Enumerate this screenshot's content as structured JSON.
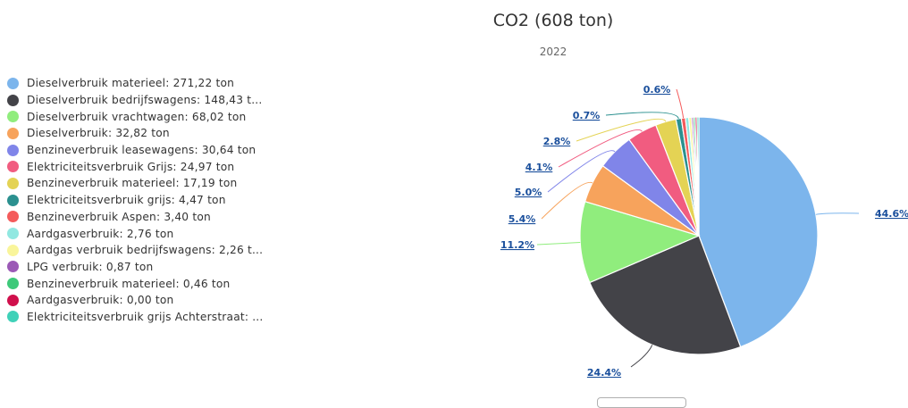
{
  "chart_data": {
    "type": "pie",
    "title": "CO2 (608 ton)",
    "subtitle": "2022",
    "unit": "ton",
    "slices": [
      {
        "name": "Dieselverbruik materieel",
        "legend_label": "Dieselverbruik materieel: 271,22 ton",
        "value": 271.22,
        "percent_label": "44.6%",
        "color": "#7cb5ec"
      },
      {
        "name": "Dieselverbruik bedrijfswagens",
        "legend_label": "Dieselverbruik bedrijfswagens: 148,43 t...",
        "value": 148.43,
        "percent_label": "24.4%",
        "color": "#434348"
      },
      {
        "name": "Dieselverbruik vrachtwagen",
        "legend_label": "Dieselverbruik vrachtwagen: 68,02 ton",
        "value": 68.02,
        "percent_label": "11.2%",
        "color": "#90ed7d"
      },
      {
        "name": "Dieselverbruik",
        "legend_label": "Dieselverbruik: 32,82 ton",
        "value": 32.82,
        "percent_label": "5.4%",
        "color": "#f7a35c"
      },
      {
        "name": "Benzineverbruik leasewagens",
        "legend_label": "Benzineverbruik leasewagens: 30,64 ton",
        "value": 30.64,
        "percent_label": "5.0%",
        "color": "#8085e9"
      },
      {
        "name": "Elektriciteitsverbruik Grijs",
        "legend_label": "Elektriciteitsverbruik Grijs: 24,97 ton",
        "value": 24.97,
        "percent_label": "4.1%",
        "color": "#f15c80"
      },
      {
        "name": "Benzineverbruik materieel",
        "legend_label": "Benzineverbruik materieel: 17,19 ton",
        "value": 17.19,
        "percent_label": "2.8%",
        "color": "#e4d354"
      },
      {
        "name": "Elektriciteitsverbruik grijs",
        "legend_label": "Elektriciteitsverbruik grijs: 4,47 ton",
        "value": 4.47,
        "percent_label": "0.7%",
        "color": "#2b908f"
      },
      {
        "name": "Benzineverbruik Aspen",
        "legend_label": "Benzineverbruik Aspen: 3,40 ton",
        "value": 3.4,
        "percent_label": "0.6%",
        "color": "#f45b5b"
      },
      {
        "name": "Aardgasverbruik",
        "legend_label": "Aardgasverbruik: 2,76 ton",
        "value": 2.76,
        "percent_label": "",
        "color": "#91e8e1"
      },
      {
        "name": "Aardgas verbruik bedrijfswagens",
        "legend_label": "Aardgas verbruik bedrijfswagens: 2,26 t...",
        "value": 2.26,
        "percent_label": "",
        "color": "#f9f59b"
      },
      {
        "name": "LPG verbruik",
        "legend_label": "LPG verbruik: 0,87 ton",
        "value": 0.87,
        "percent_label": "",
        "color": "#9b59b6"
      },
      {
        "name": "Benzineverbruik materieel",
        "legend_label": "Benzineverbruik materieel: 0,46 ton",
        "value": 0.46,
        "percent_label": "",
        "color": "#3ec97a"
      },
      {
        "name": "Aardgasverbruik",
        "legend_label": "Aardgasverbruik: 0,00 ton",
        "value": 0.0,
        "percent_label": "",
        "color": "#d0104c"
      },
      {
        "name": "Elektriciteitsverbruik grijs Achterstraat",
        "legend_label": "Elektriciteitsverbruik grijs Achterstraat: ...",
        "value": 0.0,
        "percent_label": "",
        "color": "#3fd1b8"
      }
    ],
    "legend_position": "left"
  }
}
